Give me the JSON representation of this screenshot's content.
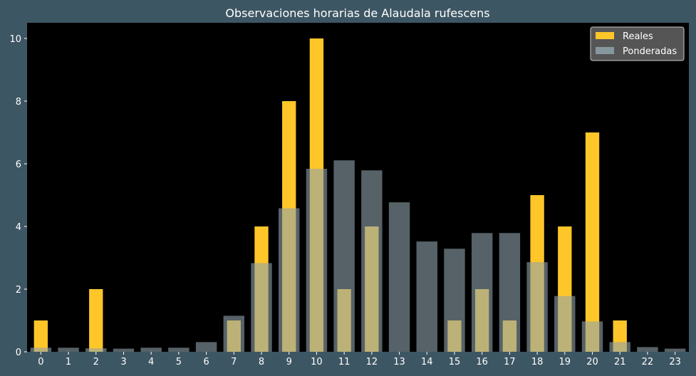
{
  "chart_data": {
    "type": "bar",
    "title": "Observaciones horarias de Alaudala rufescens",
    "xlabel": "",
    "ylabel": "",
    "categories": [
      "0",
      "1",
      "2",
      "3",
      "4",
      "5",
      "6",
      "7",
      "8",
      "9",
      "10",
      "11",
      "12",
      "13",
      "14",
      "15",
      "16",
      "17",
      "18",
      "19",
      "20",
      "21",
      "22",
      "23"
    ],
    "ylim": [
      0,
      10.5
    ],
    "yticks": [
      0,
      2,
      4,
      6,
      8,
      10
    ],
    "grid": false,
    "legend_position": "top-right",
    "series": [
      {
        "name": "Reales",
        "color": "#ffc629",
        "values": [
          1,
          0,
          2,
          0,
          0,
          0,
          0,
          1,
          4,
          8,
          10,
          2,
          4,
          0,
          0,
          1,
          2,
          1,
          5,
          4,
          7,
          1,
          0,
          0
        ]
      },
      {
        "name": "Ponderadas",
        "color": "#8fa3ab",
        "opacity": 0.6,
        "values": [
          0.13,
          0.13,
          0.11,
          0.1,
          0.13,
          0.13,
          0.31,
          1.15,
          2.83,
          4.58,
          5.84,
          6.11,
          5.79,
          4.77,
          3.52,
          3.29,
          3.79,
          3.79,
          2.86,
          1.78,
          0.97,
          0.31,
          0.15,
          0.1
        ]
      }
    ]
  }
}
